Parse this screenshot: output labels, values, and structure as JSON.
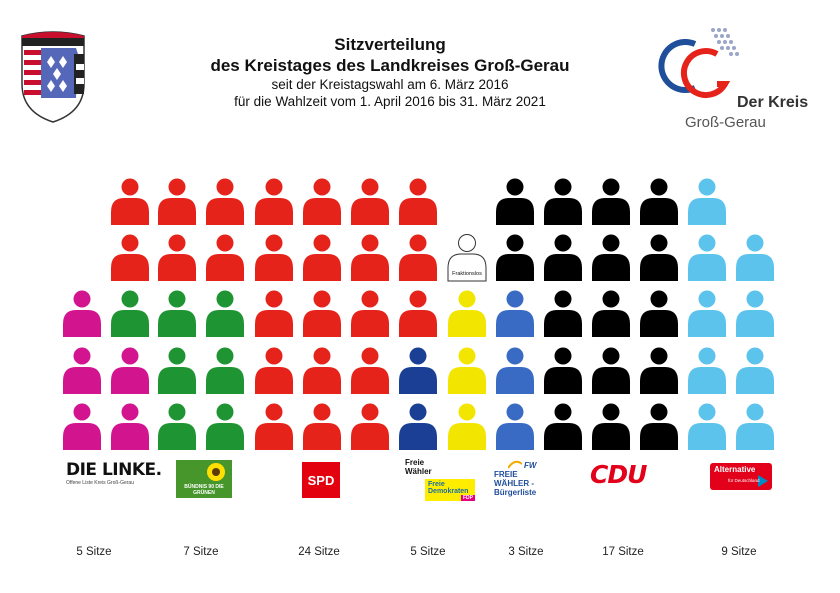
{
  "header": {
    "title_line1": "Sitzverteilung",
    "title_line2": "des Kreistages des Landkreises Groß-Gerau",
    "subtitle_line1": "seit der Kreistagswahl am 6. März 2016",
    "subtitle_line2": "für die Wahlzeit vom 1. April 2016 bis 31. März 2021"
  },
  "kreis_logo": {
    "line1": "Der Kreis",
    "line2": "Groß-Gerau"
  },
  "chart_data": {
    "type": "seat-diagram",
    "total_seats": 71,
    "parties": [
      {
        "name": "DIE LINKE.",
        "seats": 5,
        "label": "5 Sitze",
        "color": "#d2148f",
        "logo_text": "DIE LINKE.",
        "logo_subtext": "Offene Liste Kreis Groß-Gerau"
      },
      {
        "name": "BÜNDNIS 90 DIE GRÜNEN",
        "seats": 7,
        "label": "7 Sitze",
        "color": "#1e9432",
        "logo_text": "BÜNDNIS 90 DIE GRÜNEN"
      },
      {
        "name": "SPD",
        "seats": 24,
        "label": "24 Sitze",
        "color": "#e5231b",
        "logo_text": "SPD"
      },
      {
        "name": "Freie Wähler / Freie Demokraten FDP",
        "seats": 5,
        "label": "5 Sitze",
        "seats_detail": [
          {
            "name": "Freie Wähler",
            "seats": 2,
            "color": "#1b3f94"
          },
          {
            "name": "Freie Demokraten FDP",
            "seats": 3,
            "color": "#f2e600"
          }
        ],
        "logo_text": "Freie Wähler",
        "logo_subtext": "Freie Demokraten",
        "logo_mark": "FDP"
      },
      {
        "name": "FREIE WÄHLER - Bürgerliste",
        "seats": 3,
        "label": "3 Sitze",
        "color": "#3a6bc4",
        "logo_text": "FREIE WÄHLER - Bürgerliste",
        "logo_mark": "FW"
      },
      {
        "name": "CDU",
        "seats": 17,
        "label": "17 Sitze",
        "color": "#000000",
        "logo_text": "CDU"
      },
      {
        "name": "Alternative für Deutschland",
        "seats": 9,
        "label": "9 Sitze",
        "color": "#5cc4ec",
        "logo_text": "Alternative",
        "logo_subtext": "für Deutschland"
      }
    ],
    "fraktionslos": {
      "seats": 1,
      "label": "Fraktionslos",
      "color": "#ffffff"
    }
  }
}
